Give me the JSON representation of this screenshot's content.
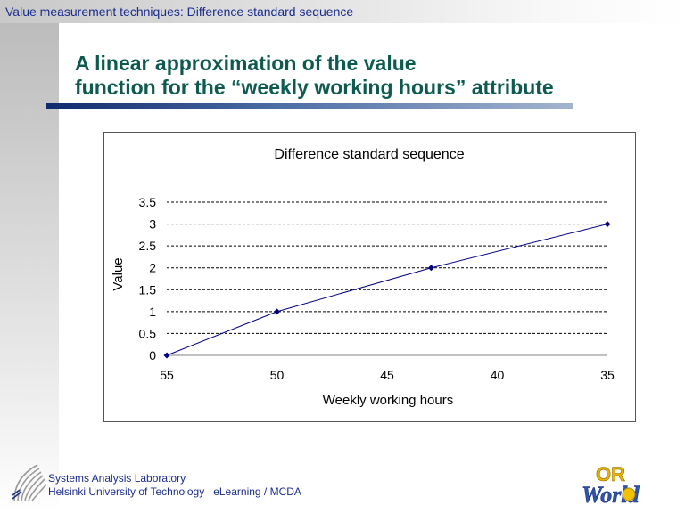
{
  "header": {
    "breadcrumb": "Value measurement techniques: Difference standard sequence"
  },
  "slide": {
    "title_line1": "A linear approximation of the value",
    "title_line2": "function for the “weekly working hours” attribute"
  },
  "footer": {
    "lab": "Systems Analysis Laboratory",
    "university": "Helsinki University of Technology",
    "course": "eLearning / MCDA",
    "logo_text_or": "OR",
    "logo_text_world": "World"
  },
  "colors": {
    "series": "#00007f",
    "title": "#0d5b50",
    "header": "#1b2d8c"
  },
  "chart_data": {
    "type": "line",
    "title": "Difference standard sequence",
    "xlabel": "Weekly working hours",
    "ylabel": "Value",
    "x_reversed": true,
    "xlim": [
      55,
      35
    ],
    "ylim": [
      0,
      3.5
    ],
    "xticks": [
      55,
      50,
      45,
      40,
      35
    ],
    "yticks": [
      0,
      0.5,
      1,
      1.5,
      2,
      2.5,
      3,
      3.5
    ],
    "grid": "horizontal dashed",
    "series": [
      {
        "x": [
          55,
          50,
          43,
          35
        ],
        "y": [
          0,
          1,
          2,
          3
        ]
      }
    ]
  }
}
